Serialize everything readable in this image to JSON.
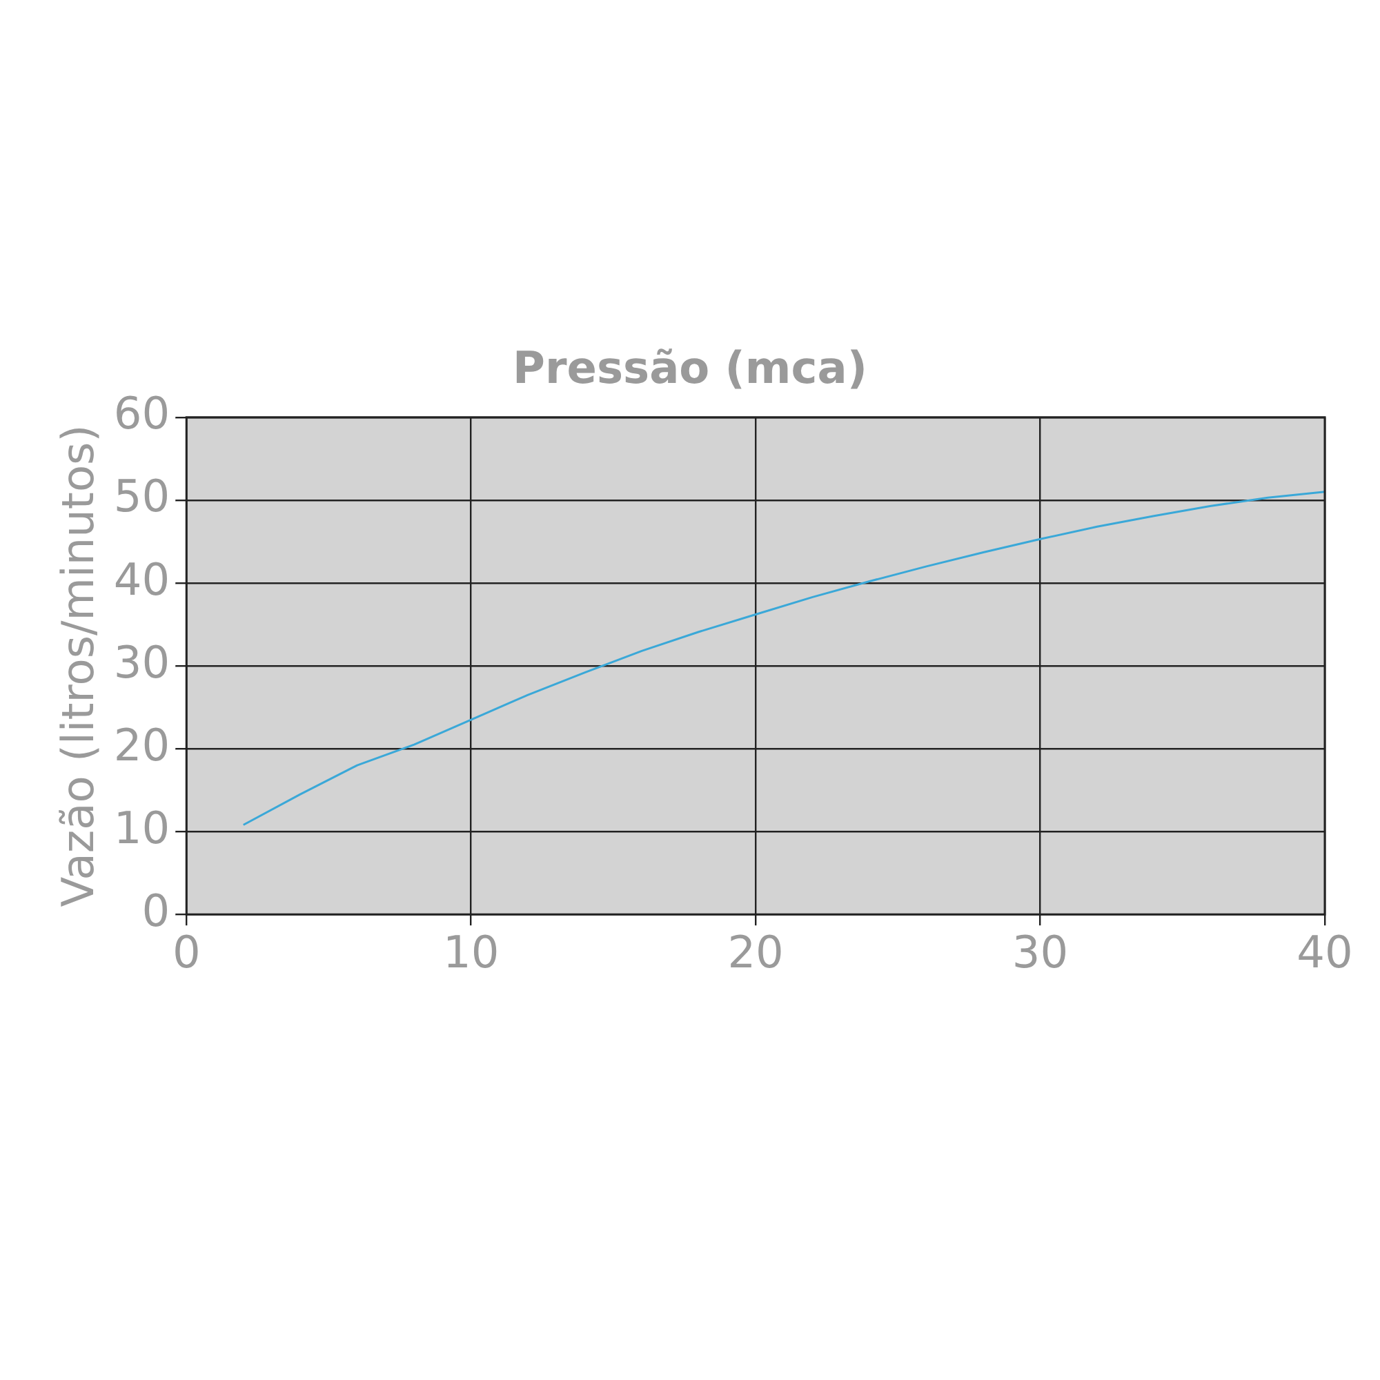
{
  "chart_data": {
    "type": "line",
    "xlabel": "Pressão (mca)",
    "ylabel": "Vazão (litros/minutos)",
    "x": [
      2,
      4,
      6,
      8,
      10,
      12,
      14,
      16,
      18,
      20,
      22,
      24,
      26,
      28,
      30,
      32,
      34,
      36,
      38,
      40
    ],
    "series": [
      {
        "color": "#3aa8d8",
        "values": [
          10.8,
          14.5,
          18,
          20.5,
          23.5,
          26.5,
          29.2,
          31.8,
          34.1,
          36.2,
          38.3,
          40.2,
          42,
          43.7,
          45.3,
          46.8,
          48.1,
          49.3,
          50.3,
          51
        ]
      }
    ],
    "xlim": [
      0,
      40
    ],
    "xticks": [
      0,
      10,
      20,
      30,
      40
    ],
    "ylim": [
      0,
      60
    ],
    "yticks": [
      0,
      10,
      20,
      30,
      40,
      50,
      60
    ],
    "grid": true,
    "legend": false,
    "marker": "none",
    "line_style": "solid"
  }
}
